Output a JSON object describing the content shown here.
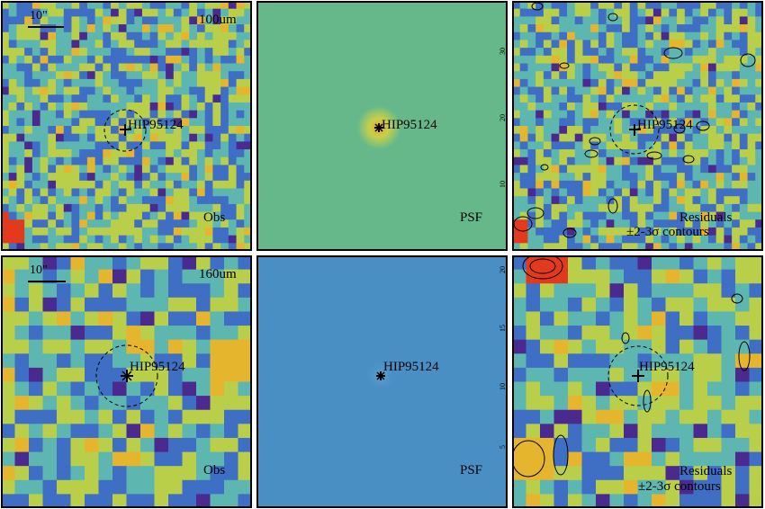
{
  "source_name": "HIP95124",
  "scale_bar_label": "10\"",
  "rows": [
    {
      "band_label": "100um",
      "obs_label": "Obs",
      "psf_label": "PSF",
      "residual_label_1": "Residuals",
      "residual_label_2": "±2-3σ contours",
      "psf_tick_labels": [
        "30",
        "20",
        "10"
      ]
    },
    {
      "band_label": "160um",
      "obs_label": "Obs",
      "psf_label": "PSF",
      "residual_label_1": "Residuals",
      "residual_label_2": "±2-3σ contours",
      "psf_tick_labels": [
        "20",
        "15",
        "10",
        "5"
      ]
    }
  ],
  "colors": {
    "map_low": "#4a2a8f",
    "map_mid_low": "#3f6fc4",
    "map_mid": "#5db7b0",
    "map_mid_high": "#b9cf4a",
    "map_high": "#e5b52e",
    "map_peak": "#e33a1e",
    "psf_100_background": "#66b88a",
    "psf_160_background": "#4a8fc4"
  }
}
